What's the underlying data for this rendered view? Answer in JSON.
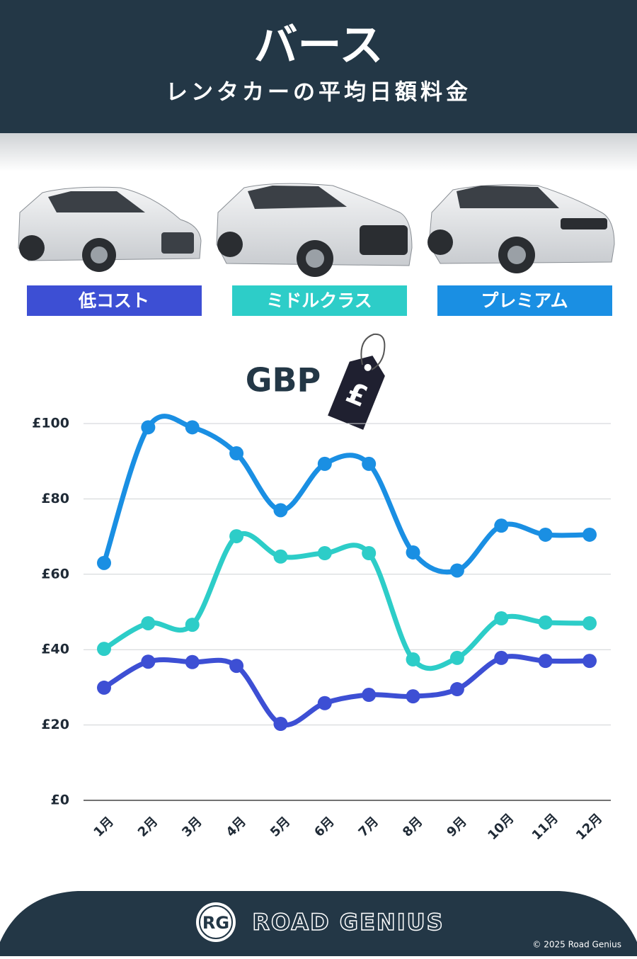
{
  "header": {
    "title": "バース",
    "subtitle": "レンタカーの平均日額料金"
  },
  "chart_data": {
    "type": "line",
    "currency_label": "GBP",
    "currency_symbol": "£",
    "categories": [
      "1月",
      "2月",
      "3月",
      "4月",
      "5月",
      "6月",
      "7月",
      "8月",
      "9月",
      "10月",
      "11月",
      "12月"
    ],
    "series": [
      {
        "name": "低コスト",
        "color": "#3d4fd4",
        "values": [
          29.9,
          36.8,
          36.7,
          35.7,
          20.3,
          25.8,
          28,
          27.6,
          29.5,
          37.8,
          37,
          37
        ]
      },
      {
        "name": "ミドルクラス",
        "color": "#2dcdc8",
        "values": [
          40.2,
          47,
          46.6,
          70.1,
          64.7,
          65.6,
          65.6,
          37.4,
          37.8,
          48.3,
          47.2,
          47
        ]
      },
      {
        "name": "プレミアム",
        "color": "#1a8fe3",
        "values": [
          63,
          99,
          99,
          92.1,
          77,
          89.3,
          89.3,
          65.8,
          61,
          72.9,
          70.5,
          70.5
        ]
      }
    ],
    "ylim": [
      0,
      100
    ],
    "yticks": [
      {
        "value": 0,
        "label": "£0"
      },
      {
        "value": 20,
        "label": "£20"
      },
      {
        "value": 40,
        "label": "£40"
      },
      {
        "value": 60,
        "label": "£60"
      },
      {
        "value": 80,
        "label": "£80"
      },
      {
        "value": 100,
        "label": "£100"
      }
    ],
    "grid": true
  },
  "footer": {
    "logo": "RG",
    "brand": "ROAD GENIUS",
    "copyright": "© 2025 Road Genius"
  }
}
